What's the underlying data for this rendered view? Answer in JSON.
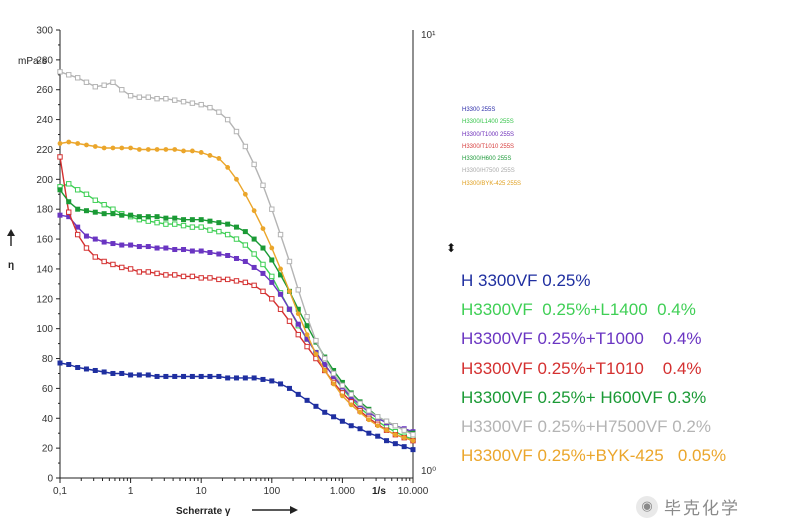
{
  "chart_data": {
    "type": "line",
    "xscale": "log",
    "xlim": [
      0.1,
      10000
    ],
    "ylim": [
      0,
      300
    ],
    "grid": false,
    "xlabel": "Scherrate γ",
    "ylabel": "η",
    "yunit": "mPa·s",
    "xunit": "1/s",
    "x_tick_labels": [
      "0,1",
      "1",
      "10",
      "100",
      "1.000",
      "10.000"
    ],
    "y_tick_labels": [
      "0",
      "20",
      "40",
      "60",
      "80",
      "100",
      "120",
      "140",
      "160",
      "180",
      "200",
      "220",
      "240",
      "260",
      "280",
      "300"
    ],
    "right_axis_labels": [
      "10¹",
      "10⁰"
    ],
    "small_legend": [
      {
        "text": "H3300 255S",
        "color": "#2a2aa8"
      },
      {
        "text": "H3300/L1400 255S",
        "color": "#35c44a"
      },
      {
        "text": "H3300/T1000 255S",
        "color": "#6a2ab8"
      },
      {
        "text": "H3300/T1010 255S",
        "color": "#d63a3a"
      },
      {
        "text": "H3300/H600 255S",
        "color": "#1e9a3a"
      },
      {
        "text": "H3300/H7500 255S",
        "color": "#aaaaaa"
      },
      {
        "text": "H3300/BYK-425 255S",
        "color": "#e0a020"
      }
    ],
    "series": [
      {
        "name": "H 3300VF 0.25%",
        "color": "#1f2fa0",
        "marker": "filled-square",
        "x": [
          0.1,
          0.133,
          0.178,
          0.237,
          0.316,
          0.422,
          0.562,
          0.75,
          1,
          1.33,
          1.78,
          2.37,
          3.16,
          4.22,
          5.62,
          7.5,
          10,
          13.3,
          17.8,
          23.7,
          31.6,
          42.2,
          56.2,
          75,
          100,
          133,
          178,
          237,
          316,
          422,
          562,
          750,
          1000,
          1333,
          1778,
          2371,
          3162,
          4217,
          5623,
          7499,
          10000
        ],
        "y": [
          77,
          76,
          74,
          73,
          72,
          71,
          70,
          70,
          69,
          69,
          69,
          68,
          68,
          68,
          68,
          68,
          68,
          68,
          68,
          67,
          67,
          67,
          67,
          66,
          65,
          63,
          60,
          56,
          52,
          48,
          44,
          41,
          38,
          35,
          33,
          30,
          28,
          25,
          23,
          21,
          19
        ]
      },
      {
        "name": "H3300VF  0.25%+L1400  0.4%",
        "color": "#3fcf55",
        "marker": "open-square",
        "x": [
          0.1,
          0.133,
          0.178,
          0.237,
          0.316,
          0.422,
          0.562,
          0.75,
          1,
          1.33,
          1.78,
          2.37,
          3.16,
          4.22,
          5.62,
          7.5,
          10,
          13.3,
          17.8,
          23.7,
          31.6,
          42.2,
          56.2,
          75,
          100,
          133,
          178,
          237,
          316,
          422,
          562,
          750,
          1000,
          1333,
          1778,
          2371,
          3162,
          4217,
          5623,
          7499,
          10000
        ],
        "y": [
          195,
          197,
          193,
          190,
          186,
          183,
          180,
          177,
          175,
          173,
          172,
          171,
          170,
          170,
          169,
          168,
          168,
          166,
          165,
          163,
          160,
          156,
          150,
          143,
          135,
          124,
          113,
          102,
          93,
          84,
          76,
          68,
          60,
          53,
          47,
          42,
          38,
          34,
          31,
          28,
          26
        ]
      },
      {
        "name": "H3300VF 0.25%+T1000    0.4%",
        "color": "#6a35c2",
        "marker": "filled-square",
        "x": [
          0.1,
          0.133,
          0.178,
          0.237,
          0.316,
          0.422,
          0.562,
          0.75,
          1,
          1.33,
          1.78,
          2.37,
          3.16,
          4.22,
          5.62,
          7.5,
          10,
          13.3,
          17.8,
          23.7,
          31.6,
          42.2,
          56.2,
          75,
          100,
          133,
          178,
          237,
          316,
          422,
          562,
          750,
          1000,
          1333,
          1778,
          2371,
          3162,
          4217,
          5623,
          7499,
          10000
        ],
        "y": [
          176,
          175,
          168,
          162,
          160,
          158,
          157,
          156,
          156,
          155,
          155,
          154,
          154,
          153,
          153,
          152,
          152,
          151,
          150,
          149,
          147,
          145,
          141,
          137,
          131,
          123,
          113,
          103,
          93,
          84,
          76,
          68,
          61,
          54,
          49,
          44,
          40,
          37,
          35,
          33,
          31
        ]
      },
      {
        "name": "H3300VF 0.25%+T1010    0.4%",
        "color": "#d43030",
        "marker": "open-square",
        "x": [
          0.1,
          0.133,
          0.178,
          0.237,
          0.316,
          0.422,
          0.562,
          0.75,
          1,
          1.33,
          1.78,
          2.37,
          3.16,
          4.22,
          5.62,
          7.5,
          10,
          13.3,
          17.8,
          23.7,
          31.6,
          42.2,
          56.2,
          75,
          100,
          133,
          178,
          237,
          316,
          422,
          562,
          750,
          1000,
          1333,
          1778,
          2371,
          3162,
          4217,
          5623,
          7499,
          10000
        ],
        "y": [
          215,
          178,
          163,
          154,
          148,
          145,
          143,
          141,
          140,
          138,
          138,
          137,
          136,
          136,
          135,
          135,
          134,
          134,
          133,
          133,
          132,
          131,
          129,
          125,
          120,
          113,
          105,
          96,
          88,
          80,
          72,
          64,
          57,
          51,
          45,
          40,
          36,
          32,
          29,
          27,
          25
        ]
      },
      {
        "name": "H3300VF 0.25%+ H600VF 0.3%",
        "color": "#1a9a35",
        "marker": "filled-square",
        "x": [
          0.1,
          0.133,
          0.178,
          0.237,
          0.316,
          0.422,
          0.562,
          0.75,
          1,
          1.33,
          1.78,
          2.37,
          3.16,
          4.22,
          5.62,
          7.5,
          10,
          13.3,
          17.8,
          23.7,
          31.6,
          42.2,
          56.2,
          75,
          100,
          133,
          178,
          237,
          316,
          422,
          562,
          750,
          1000,
          1333,
          1778,
          2371,
          3162,
          4217,
          5623,
          7499,
          10000
        ],
        "y": [
          193,
          185,
          180,
          179,
          178,
          177,
          177,
          176,
          176,
          175,
          175,
          175,
          174,
          174,
          173,
          173,
          173,
          172,
          171,
          170,
          168,
          165,
          160,
          154,
          146,
          136,
          125,
          113,
          102,
          91,
          81,
          72,
          64,
          57,
          51,
          46,
          41,
          38,
          35,
          32,
          30
        ]
      },
      {
        "name": "H3300VF 0.25%+H7500VF 0.2%",
        "color": "#b4b4b4",
        "marker": "open-square",
        "x": [
          0.1,
          0.133,
          0.178,
          0.237,
          0.316,
          0.422,
          0.562,
          0.75,
          1,
          1.33,
          1.78,
          2.37,
          3.16,
          4.22,
          5.62,
          7.5,
          10,
          13.3,
          17.8,
          23.7,
          31.6,
          42.2,
          56.2,
          75,
          100,
          133,
          178,
          237,
          316,
          422,
          562,
          750,
          1000,
          1333,
          1778,
          2371,
          3162,
          4217,
          5623,
          7499,
          10000
        ],
        "y": [
          272,
          270,
          268,
          265,
          262,
          263,
          265,
          260,
          256,
          255,
          255,
          254,
          254,
          253,
          252,
          251,
          250,
          248,
          245,
          240,
          232,
          222,
          210,
          196,
          180,
          163,
          145,
          126,
          108,
          92,
          80,
          70,
          62,
          56,
          50,
          45,
          41,
          38,
          35,
          32,
          29
        ]
      },
      {
        "name": "H3300VF 0.25%+BYK-425   0.05%",
        "color": "#eba62b",
        "marker": "filled-circle",
        "x": [
          0.1,
          0.133,
          0.178,
          0.237,
          0.316,
          0.422,
          0.562,
          0.75,
          1,
          1.33,
          1.78,
          2.37,
          3.16,
          4.22,
          5.62,
          7.5,
          10,
          13.3,
          17.8,
          23.7,
          31.6,
          42.2,
          56.2,
          75,
          100,
          133,
          178,
          237,
          316,
          422,
          562,
          750,
          1000,
          1333,
          1778,
          2371,
          3162,
          4217,
          5623,
          7499,
          10000
        ],
        "y": [
          224,
          225,
          224,
          223,
          222,
          221,
          221,
          221,
          221,
          220,
          220,
          220,
          220,
          220,
          219,
          219,
          218,
          216,
          214,
          208,
          200,
          190,
          179,
          167,
          154,
          140,
          125,
          110,
          96,
          83,
          72,
          63,
          55,
          49,
          44,
          39,
          35,
          32,
          29,
          27,
          25
        ]
      }
    ]
  },
  "watermark": {
    "icon": "wechat-icon",
    "text": "毕克化学"
  }
}
